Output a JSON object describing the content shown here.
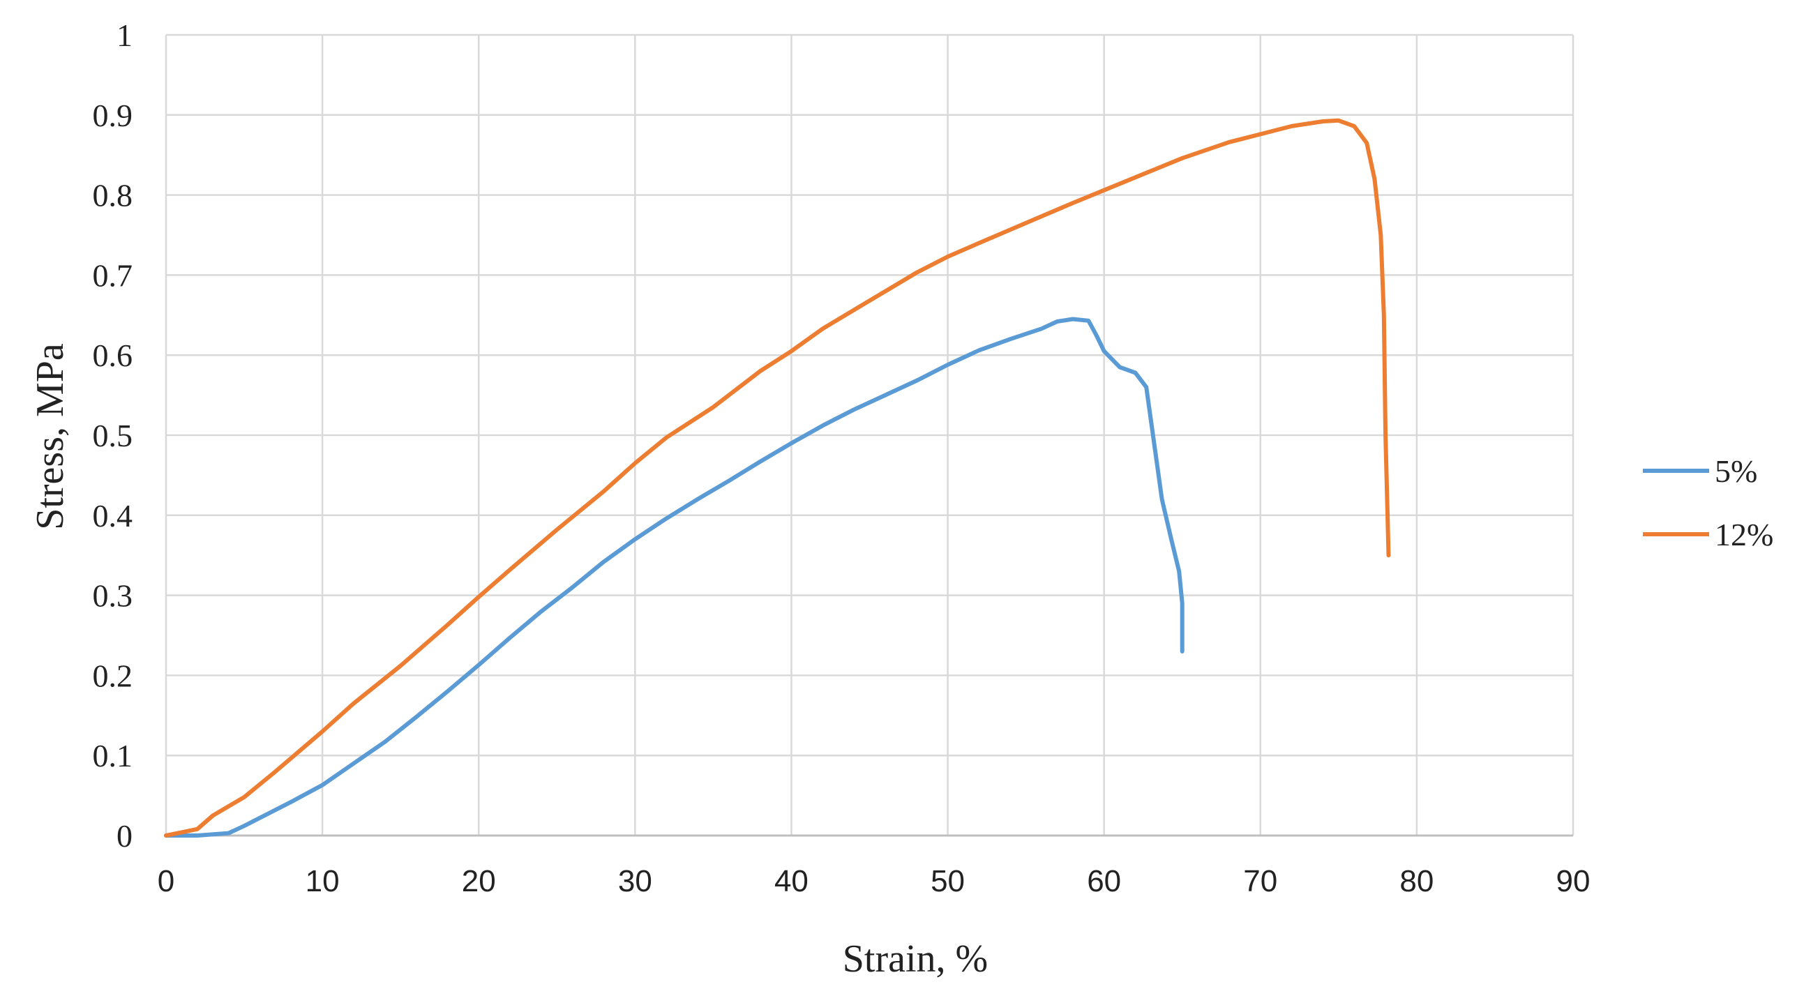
{
  "chart_data": {
    "type": "line",
    "xlabel": "Strain, %",
    "ylabel": "Stress, MPa",
    "xlim": [
      0,
      90
    ],
    "ylim": [
      0,
      1
    ],
    "x_ticks": [
      "0",
      "10",
      "20",
      "30",
      "40",
      "50",
      "60",
      "70",
      "80",
      "90"
    ],
    "y_ticks": [
      "0",
      "0.1",
      "0.2",
      "0.3",
      "0.4",
      "0.5",
      "0.6",
      "0.7",
      "0.8",
      "0.9",
      "1"
    ],
    "grid": true,
    "legend_position": "right",
    "series": [
      {
        "name": "5%",
        "color": "#5b9bd5",
        "points": [
          [
            0,
            0
          ],
          [
            2,
            0
          ],
          [
            4,
            0.003
          ],
          [
            5,
            0.012
          ],
          [
            6,
            0.022
          ],
          [
            8,
            0.042
          ],
          [
            10,
            0.063
          ],
          [
            12,
            0.09
          ],
          [
            14,
            0.117
          ],
          [
            16,
            0.148
          ],
          [
            18,
            0.18
          ],
          [
            20,
            0.213
          ],
          [
            22,
            0.247
          ],
          [
            24,
            0.28
          ],
          [
            26,
            0.31
          ],
          [
            28,
            0.342
          ],
          [
            30,
            0.37
          ],
          [
            32,
            0.396
          ],
          [
            34,
            0.42
          ],
          [
            36,
            0.443
          ],
          [
            38,
            0.467
          ],
          [
            40,
            0.49
          ],
          [
            42,
            0.512
          ],
          [
            44,
            0.532
          ],
          [
            46,
            0.55
          ],
          [
            48,
            0.568
          ],
          [
            50,
            0.588
          ],
          [
            52,
            0.606
          ],
          [
            54,
            0.62
          ],
          [
            56,
            0.633
          ],
          [
            57,
            0.642
          ],
          [
            58,
            0.645
          ],
          [
            59,
            0.643
          ],
          [
            59.5,
            0.625
          ],
          [
            60,
            0.605
          ],
          [
            61,
            0.585
          ],
          [
            62,
            0.578
          ],
          [
            62.7,
            0.56
          ],
          [
            63.2,
            0.49
          ],
          [
            63.7,
            0.42
          ],
          [
            64.3,
            0.37
          ],
          [
            64.8,
            0.33
          ],
          [
            65,
            0.29
          ],
          [
            65,
            0.23
          ]
        ]
      },
      {
        "name": "12%",
        "color": "#ed7d31",
        "points": [
          [
            0,
            0
          ],
          [
            1,
            0.004
          ],
          [
            2,
            0.008
          ],
          [
            3,
            0.025
          ],
          [
            5,
            0.048
          ],
          [
            7,
            0.08
          ],
          [
            10,
            0.13
          ],
          [
            12,
            0.165
          ],
          [
            15,
            0.212
          ],
          [
            18,
            0.263
          ],
          [
            20,
            0.298
          ],
          [
            22,
            0.332
          ],
          [
            25,
            0.382
          ],
          [
            28,
            0.43
          ],
          [
            30,
            0.465
          ],
          [
            32,
            0.497
          ],
          [
            35,
            0.535
          ],
          [
            38,
            0.58
          ],
          [
            40,
            0.605
          ],
          [
            42,
            0.633
          ],
          [
            45,
            0.668
          ],
          [
            48,
            0.703
          ],
          [
            50,
            0.723
          ],
          [
            52,
            0.74
          ],
          [
            55,
            0.765
          ],
          [
            58,
            0.79
          ],
          [
            60,
            0.806
          ],
          [
            62,
            0.822
          ],
          [
            65,
            0.846
          ],
          [
            68,
            0.866
          ],
          [
            70,
            0.876
          ],
          [
            72,
            0.886
          ],
          [
            74,
            0.892
          ],
          [
            75,
            0.893
          ],
          [
            76,
            0.886
          ],
          [
            76.8,
            0.865
          ],
          [
            77.3,
            0.82
          ],
          [
            77.7,
            0.75
          ],
          [
            77.9,
            0.65
          ],
          [
            78,
            0.5
          ],
          [
            78.2,
            0.35
          ]
        ]
      }
    ]
  }
}
